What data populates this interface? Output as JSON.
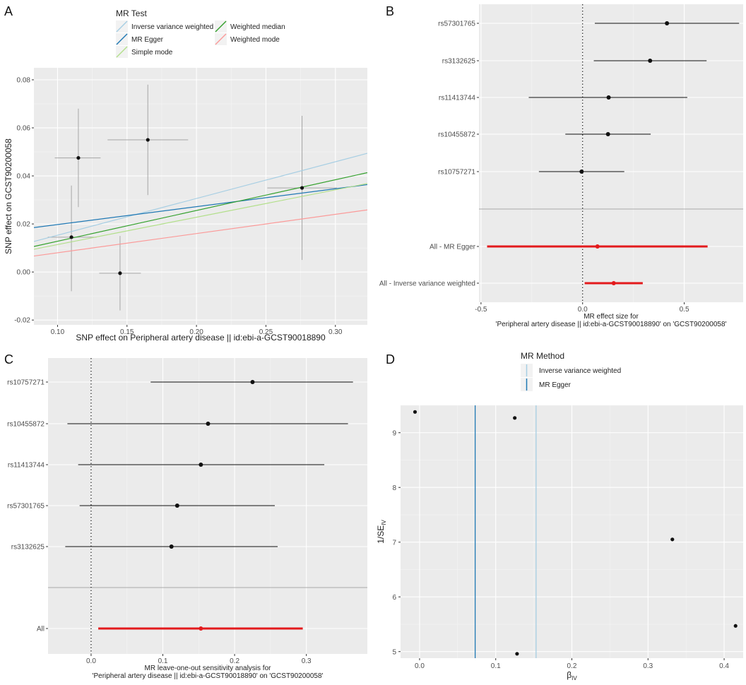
{
  "colors": {
    "panel_bg": "#ebebeb",
    "grid_major": "#ffffff",
    "point": "#111111",
    "error_bar_a": "#a6a6a6",
    "error_bar_b": "#111111",
    "summary_red": "#e31a1c",
    "ivw": "#a6cee3",
    "mr_egger": "#1f78b4",
    "simple_mode": "#b2df8a",
    "weighted_median": "#33a02c",
    "weighted_mode": "#fb9a99",
    "divider": "#aaaaaa"
  },
  "chart_data": [
    {
      "panel": "A",
      "type": "scatter",
      "xlabel": "SNP effect on Peripheral artery disease || id:ebi-a-GCST90018890",
      "ylabel": "SNP effect on GCST90200058",
      "xlim": [
        0.083,
        0.323
      ],
      "ylim": [
        -0.022,
        0.085
      ],
      "xticks": [
        {
          "v": 0.1,
          "label": "0.10"
        },
        {
          "v": 0.15,
          "label": "0.15"
        },
        {
          "v": 0.2,
          "label": "0.20"
        },
        {
          "v": 0.25,
          "label": "0.25"
        },
        {
          "v": 0.3,
          "label": "0.30"
        }
      ],
      "yticks": [
        {
          "v": -0.02,
          "label": "-0.02"
        },
        {
          "v": 0.0,
          "label": "0.00"
        },
        {
          "v": 0.02,
          "label": "0.02"
        },
        {
          "v": 0.04,
          "label": "0.04"
        },
        {
          "v": 0.06,
          "label": "0.06"
        },
        {
          "v": 0.08,
          "label": "0.08"
        }
      ],
      "legend_title": "MR Test",
      "legend": [
        {
          "name": "Inverse variance weighted",
          "color": "#a6cee3"
        },
        {
          "name": "MR Egger",
          "color": "#1f78b4"
        },
        {
          "name": "Simple mode",
          "color": "#b2df8a"
        },
        {
          "name": "Weighted median",
          "color": "#33a02c"
        },
        {
          "name": "Weighted mode",
          "color": "#fb9a99"
        }
      ],
      "points": [
        {
          "x": 0.115,
          "y": 0.0475,
          "xlo": 0.098,
          "xhi": 0.131,
          "ylo": 0.027,
          "yhi": 0.068
        },
        {
          "x": 0.165,
          "y": 0.055,
          "xlo": 0.136,
          "xhi": 0.194,
          "ylo": 0.032,
          "yhi": 0.078
        },
        {
          "x": 0.11,
          "y": 0.0145,
          "xlo": 0.093,
          "xhi": 0.128,
          "ylo": -0.008,
          "yhi": 0.036
        },
        {
          "x": 0.145,
          "y": -0.0005,
          "xlo": 0.13,
          "xhi": 0.16,
          "ylo": -0.016,
          "yhi": 0.015
        },
        {
          "x": 0.276,
          "y": 0.035,
          "xlo": 0.251,
          "xhi": 0.301,
          "ylo": 0.005,
          "yhi": 0.065
        }
      ],
      "lines": [
        {
          "name": "Inverse variance weighted",
          "intercept": 0.0,
          "slope": 0.153
        },
        {
          "name": "MR Egger",
          "intercept": 0.0123,
          "slope": 0.0745
        },
        {
          "name": "Simple mode",
          "intercept": 0.0,
          "slope": 0.114
        },
        {
          "name": "Weighted median",
          "intercept": 0.0,
          "slope": 0.128
        },
        {
          "name": "Weighted mode",
          "intercept": 0.0,
          "slope": 0.08
        }
      ]
    },
    {
      "panel": "B",
      "type": "forest",
      "xlabel_lines": [
        "MR effect size for",
        "'Peripheral artery disease || id:ebi-a-GCST90018890' on 'GCST90200058'"
      ],
      "xlim": [
        -0.51,
        0.79
      ],
      "xticks": [
        {
          "v": -0.5,
          "label": "-0.5"
        },
        {
          "v": 0.0,
          "label": "0.0"
        },
        {
          "v": 0.5,
          "label": "0.5"
        }
      ],
      "rows": [
        {
          "label": "rs57301765",
          "est": 0.415,
          "lo": 0.06,
          "hi": 0.77,
          "summary": false
        },
        {
          "label": "rs3132625",
          "est": 0.332,
          "lo": 0.055,
          "hi": 0.61,
          "summary": false
        },
        {
          "label": "rs11413744",
          "est": 0.128,
          "lo": -0.265,
          "hi": 0.515,
          "summary": false
        },
        {
          "label": "rs10455872",
          "est": 0.125,
          "lo": -0.085,
          "hi": 0.335,
          "summary": false
        },
        {
          "label": "rs10757271",
          "est": -0.005,
          "lo": -0.215,
          "hi": 0.205,
          "summary": false
        },
        {
          "label": "All - MR Egger",
          "est": 0.073,
          "lo": -0.47,
          "hi": 0.615,
          "summary": true
        },
        {
          "label": "All - Inverse variance weighted",
          "est": 0.153,
          "lo": 0.01,
          "hi": 0.296,
          "summary": true
        }
      ]
    },
    {
      "panel": "C",
      "type": "forest",
      "xlabel_lines": [
        "MR leave-one-out sensitivity analysis for",
        "'Peripheral artery disease || id:ebi-a-GCST90018890' on 'GCST90200058'"
      ],
      "xlim": [
        -0.06,
        0.385
      ],
      "xticks": [
        {
          "v": 0.0,
          "label": "0.0"
        },
        {
          "v": 0.1,
          "label": "0.1"
        },
        {
          "v": 0.2,
          "label": "0.2"
        },
        {
          "v": 0.3,
          "label": "0.3"
        }
      ],
      "rows": [
        {
          "label": "rs10757271",
          "est": 0.225,
          "lo": 0.083,
          "hi": 0.365,
          "summary": false
        },
        {
          "label": "rs10455872",
          "est": 0.163,
          "lo": -0.033,
          "hi": 0.358,
          "summary": false
        },
        {
          "label": "rs11413744",
          "est": 0.153,
          "lo": -0.018,
          "hi": 0.325,
          "summary": false
        },
        {
          "label": "rs57301765",
          "est": 0.12,
          "lo": -0.016,
          "hi": 0.256,
          "summary": false
        },
        {
          "label": "rs3132625",
          "est": 0.112,
          "lo": -0.036,
          "hi": 0.26,
          "summary": false
        },
        {
          "label": "All",
          "est": 0.153,
          "lo": 0.01,
          "hi": 0.295,
          "summary": true
        }
      ]
    },
    {
      "panel": "D",
      "type": "scatter",
      "xlabel": "β",
      "xlabel_sub": "IV",
      "ylabel": "1/SE",
      "ylabel_sub": "IV",
      "xlim": [
        -0.025,
        0.425
      ],
      "ylim": [
        4.88,
        9.5
      ],
      "xticks": [
        {
          "v": 0.0,
          "label": "0.0"
        },
        {
          "v": 0.1,
          "label": "0.1"
        },
        {
          "v": 0.2,
          "label": "0.2"
        },
        {
          "v": 0.3,
          "label": "0.3"
        },
        {
          "v": 0.4,
          "label": "0.4"
        }
      ],
      "yticks": [
        {
          "v": 5,
          "label": "5"
        },
        {
          "v": 6,
          "label": "6"
        },
        {
          "v": 7,
          "label": "7"
        },
        {
          "v": 8,
          "label": "8"
        },
        {
          "v": 9,
          "label": "9"
        }
      ],
      "legend_title": "MR Method",
      "legend": [
        {
          "name": "Inverse variance weighted",
          "color": "#a6cee3"
        },
        {
          "name": "MR Egger",
          "color": "#1f78b4"
        }
      ],
      "points": [
        {
          "x": -0.006,
          "y": 9.38
        },
        {
          "x": 0.125,
          "y": 9.27
        },
        {
          "x": 0.332,
          "y": 7.05
        },
        {
          "x": 0.415,
          "y": 5.47
        },
        {
          "x": 0.128,
          "y": 4.96
        }
      ],
      "vlines": [
        {
          "name": "MR Egger",
          "x": 0.073
        },
        {
          "name": "Inverse variance weighted",
          "x": 0.153
        }
      ]
    }
  ]
}
